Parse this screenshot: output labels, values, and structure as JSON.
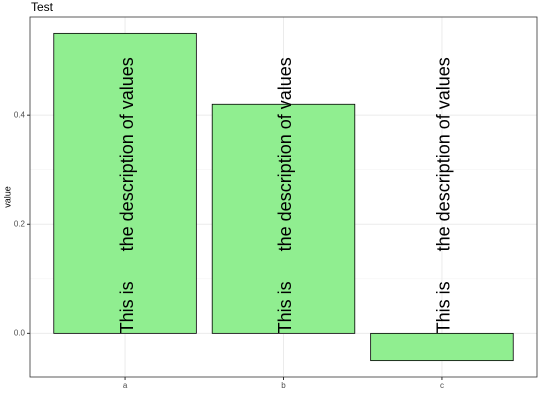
{
  "chart_data": {
    "type": "bar",
    "title": "Test",
    "y_label": "value",
    "categories": [
      "a",
      "b",
      "c"
    ],
    "values": [
      0.55,
      0.42,
      -0.05
    ],
    "color": "#90ee90",
    "ylim": [
      -0.08,
      0.58
    ],
    "yticks": [
      {
        "value": 0,
        "label": "0.0"
      },
      0.2,
      0.4
    ],
    "grid": true,
    "annotations": [
      "This is      the description of values",
      "This is      the description of values",
      "This is      the description of values"
    ]
  }
}
